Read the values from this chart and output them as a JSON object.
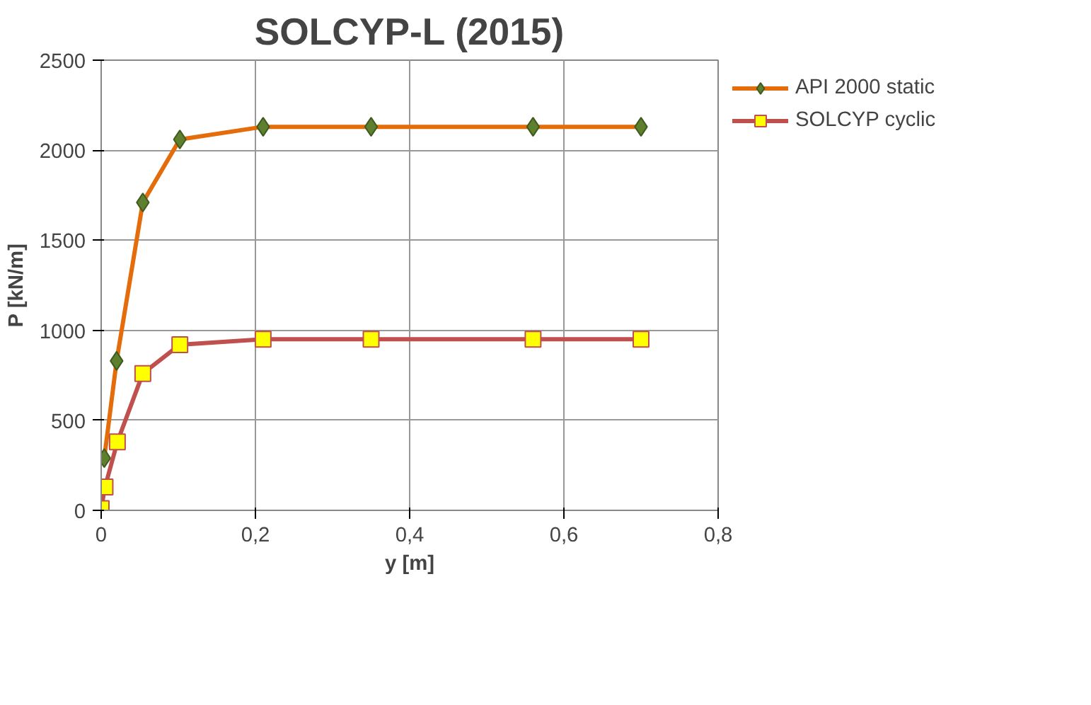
{
  "chart_data": {
    "type": "line",
    "title": "SOLCYP-L (2015)",
    "xlabel": "y [m]",
    "ylabel": "P [kN/m]",
    "xlim": [
      0,
      0.8
    ],
    "ylim": [
      0,
      2500
    ],
    "xticks": [
      0,
      {
        "value": 0.2,
        "label": "0,2"
      },
      {
        "value": 0.4,
        "label": "0,4"
      },
      {
        "value": 0.6,
        "label": "0,6"
      },
      {
        "value": 0.8,
        "label": "0,8"
      }
    ],
    "yticks": [
      0,
      500,
      1000,
      1500,
      2000,
      2500
    ],
    "grid": true,
    "legend": "right",
    "line_style": "solid",
    "series": [
      {
        "name": "API 2000 static",
        "color": "#e46c0a",
        "marker": "diamond",
        "colors": [
          "#5e7f2d",
          "#5e7f2d",
          "#5e7f2d",
          "#5e7f2d",
          "#5e7f2d",
          "#5e7f2d",
          "#5e7f2d",
          "#5e7f2d"
        ],
        "x": [
          0.004,
          0.02,
          0.054,
          0.102,
          0.21,
          0.35,
          0.56,
          0.7
        ],
        "values": [
          290,
          830,
          1710,
          2060,
          2130,
          2130,
          2130,
          2130
        ]
      },
      {
        "name": "SOLCYP cyclic",
        "color": "#c0504d",
        "marker": "square",
        "colors": [
          "#ffff00",
          "#ffff00",
          "#ffff00",
          "#ffff00",
          "#ffff00",
          "#ffff00",
          "#ffff00",
          "#ffff00",
          "#ffff00"
        ],
        "x": [
          0,
          0.005,
          0.021,
          0.054,
          0.102,
          0.21,
          0.35,
          0.56,
          0.7
        ],
        "values": [
          10,
          130,
          380,
          760,
          920,
          950,
          950,
          950,
          950
        ]
      }
    ]
  }
}
